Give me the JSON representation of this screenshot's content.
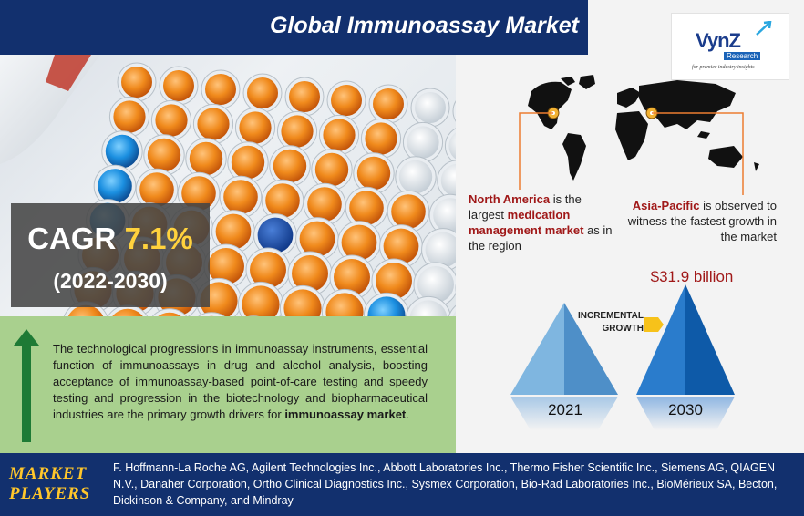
{
  "header": {
    "title": "Global Immunoassay Market"
  },
  "logo": {
    "name": "VynZ",
    "sub": "Research",
    "tagline": "for premier industry insights"
  },
  "cagr": {
    "label": "CAGR",
    "value": "7.1%",
    "period": "(2022-2030)"
  },
  "drivers": {
    "text": "The technological progressions in immunoassay instruments, essential function of immunoassays in drug and alcohol analysis, boosting acceptance of immunoassay-based point-of-care testing and speedy testing and progression in the biotechnology and biopharmaceutical industries are the primary growth drivers for ",
    "bold": "immunoassay market",
    "end": "."
  },
  "regions": {
    "north_america": {
      "name": "North America",
      "pre": " is the largest ",
      "bold": "medication management market",
      "post": " as in the region"
    },
    "asia_pacific": {
      "name": "Asia-Pacific",
      "text": " is observed to witness the fastest growth in the market"
    }
  },
  "growth": {
    "value_2030": "$31.9 billion",
    "incremental_line1": "INCREMENTAL",
    "incremental_line2": "GROWTH",
    "year_start": "2021",
    "year_end": "2030"
  },
  "players": {
    "label_line1": "MARKET",
    "label_line2": "PLAYERS",
    "text": "F. Hoffmann-La Roche AG, Agilent Technologies Inc., Abbott Laboratories Inc., Thermo Fisher Scientific Inc., Siemens AG, QIAGEN N.V., Danaher Corporation, Ortho Clinical Diagnostics Inc., Sysmex Corporation, Bio-Rad Laboratories Inc., BioMérieux SA, Becton, Dickinson & Company, and Mindray"
  },
  "colors": {
    "navy": "#12306e",
    "green": "#a9d08e",
    "accent_red": "#a01818",
    "orange": "#ed7d31",
    "blue_pyramid": "#1f6fb8"
  }
}
